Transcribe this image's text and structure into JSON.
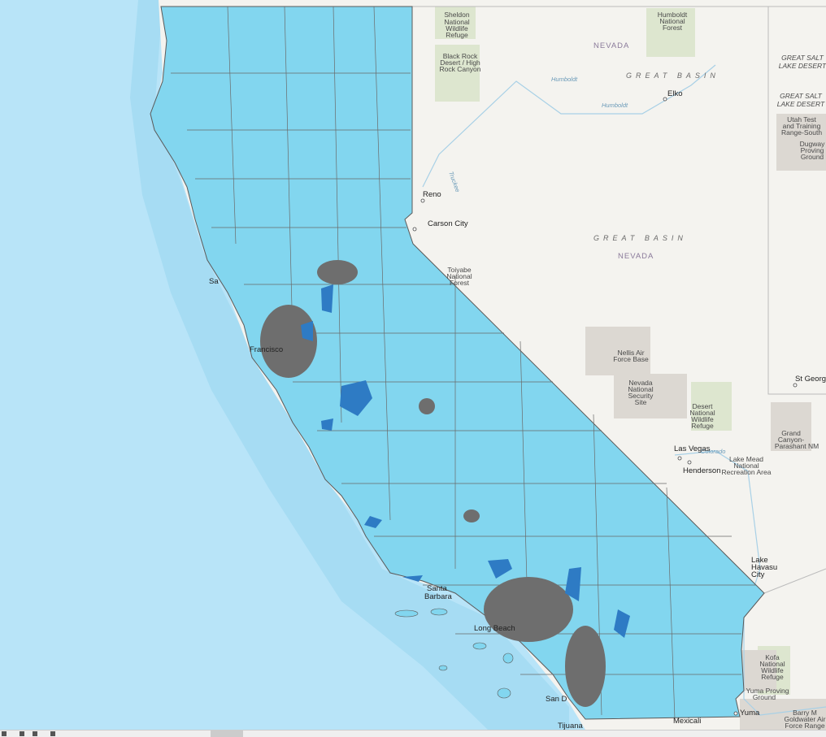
{
  "map": {
    "colors": {
      "sea": "#b8e4f8",
      "land": "#f4f3ef",
      "california_fill": "#82d6ef",
      "highlight": "#2e7bc4",
      "dense": "#6e6e6e",
      "boundary": "#5a5a5a",
      "protected": "#dde6cf",
      "military": "#dcd8d2"
    },
    "states": {
      "nevada_north": "NEVADA",
      "nevada_south": "NEVADA"
    },
    "regions": {
      "great_basin_north": "GREAT BASIN",
      "great_basin_south": "GREAT BASIN",
      "gsl_desert_1": [
        "GREAT SALT",
        "LAKE DESERT"
      ],
      "gsl_desert_2": [
        "GREAT SALT",
        "LAKE DESERT"
      ]
    },
    "rivers": {
      "humboldt_1": "Humboldt",
      "humboldt_2": "Humboldt",
      "truckee": "Truckee",
      "colorado": "Colorado"
    },
    "places": {
      "sheldon": [
        "Sheldon",
        "National",
        "Wildlife",
        "Refuge"
      ],
      "humboldt_nf": [
        "Humboldt",
        "National",
        "Forest"
      ],
      "black_rock": [
        "Black Rock",
        "Desert / High",
        "Rock Canyon"
      ],
      "utah_test": [
        "Utah Test",
        "and Training",
        "Range-South"
      ],
      "dugway": [
        "Dugway",
        "Proving",
        "Ground"
      ],
      "toiyabe": [
        "Toiyabe",
        "National",
        "Forest"
      ],
      "nellis": [
        "Nellis Air",
        "Force Base"
      ],
      "nnss": [
        "Nevada",
        "National",
        "Security",
        "Site"
      ],
      "desert_nwr": [
        "Desert",
        "National",
        "Wildlife",
        "Refuge"
      ],
      "grand_canyon": [
        "Grand",
        "Canyon-",
        "Parashant NM"
      ],
      "lake_mead": [
        "Lake Mead",
        "National",
        "Recreation Area"
      ],
      "kofa": [
        "Kofa",
        "National",
        "Wildlife",
        "Refuge"
      ],
      "yuma_pg": [
        "Yuma Proving",
        "Ground"
      ],
      "goldwater": [
        "Barry M",
        "Goldwater Air",
        "Force Range"
      ]
    },
    "cities": {
      "elko": "Elko",
      "reno": "Reno",
      "carson": "Carson City",
      "st_george": "St George",
      "las_vegas": "Las Vegas",
      "henderson": "Henderson",
      "lake_havasu": [
        "Lake",
        "Havasu",
        "City"
      ],
      "yuma": "Yuma",
      "mexicali": "Mexicali",
      "tijuana": "Tijuana",
      "san_diego": "San D",
      "long_beach": "Long Beach",
      "santa_barbara": [
        "Santa",
        "Barbara"
      ],
      "san_francisco": "Francisco",
      "sacramento": "Sa"
    }
  }
}
